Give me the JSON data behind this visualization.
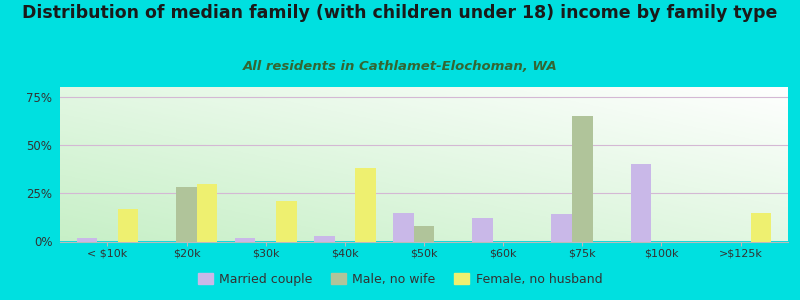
{
  "title": "Distribution of median family (with children under 18) income by family type",
  "subtitle": "All residents in Cathlamet-Elochoman, WA",
  "categories": [
    "< $10k",
    "$20k",
    "$30k",
    "$40k",
    "$50k",
    "$60k",
    "$75k",
    "$100k",
    ">$125k"
  ],
  "married_couple": [
    2,
    0,
    2,
    3,
    15,
    12,
    14,
    40,
    0
  ],
  "male_no_wife": [
    0,
    28,
    0,
    0,
    8,
    0,
    65,
    0,
    0
  ],
  "female_no_husband": [
    17,
    30,
    21,
    38,
    0,
    0,
    0,
    0,
    15
  ],
  "color_married": "#c9b8e8",
  "color_male": "#b0c49a",
  "color_female": "#eef070",
  "background_outer": "#00e0e0",
  "ylim_max": 80,
  "yticks": [
    0,
    25,
    50,
    75
  ],
  "ytick_labels": [
    "0%",
    "25%",
    "50%",
    "75%"
  ],
  "legend_labels": [
    "Married couple",
    "Male, no wife",
    "Female, no husband"
  ],
  "title_fontsize": 12.5,
  "subtitle_fontsize": 9.5
}
